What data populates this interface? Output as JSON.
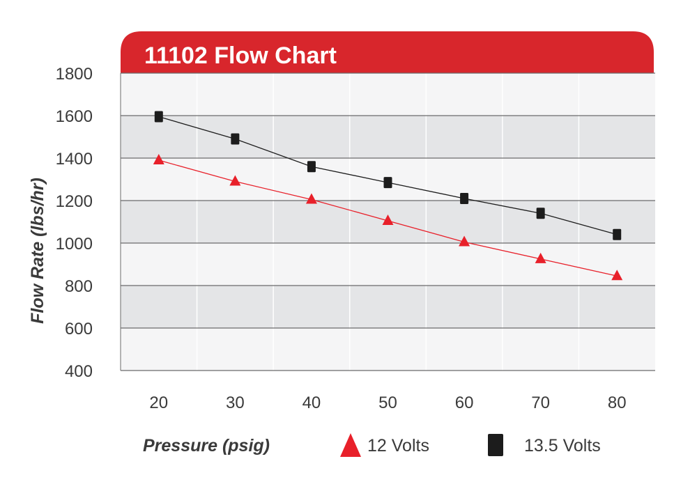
{
  "colors": {
    "header_red": "#d8262c",
    "band_gray": "#e4e5e7",
    "band_light": "#f5f5f6",
    "grid": "#6b6b6b",
    "series_12v": "#e8202a",
    "series_135v": "#1c1c1c",
    "text": "#3a3a3a"
  },
  "chart_data": {
    "type": "line",
    "title": "11102 Flow Chart",
    "xlabel": "Pressure (psig)",
    "ylabel": "Flow Rate (lbs/hr)",
    "xlim": [
      15,
      85
    ],
    "ylim": [
      400,
      1800
    ],
    "x_ticks": [
      20,
      30,
      40,
      50,
      60,
      70,
      80
    ],
    "y_ticks": [
      400,
      600,
      800,
      1000,
      1200,
      1400,
      1600,
      1800
    ],
    "grid": "horizontal",
    "legend_position": "bottom",
    "series": [
      {
        "name": "12 Volts",
        "marker": "triangle",
        "color": "#e8202a",
        "x": [
          20,
          30,
          40,
          50,
          60,
          70,
          80
        ],
        "y": [
          1390,
          1290,
          1205,
          1105,
          1005,
          925,
          845
        ]
      },
      {
        "name": "13.5 Volts",
        "marker": "square",
        "color": "#1c1c1c",
        "x": [
          20,
          30,
          40,
          50,
          60,
          70,
          80
        ],
        "y": [
          1595,
          1490,
          1360,
          1285,
          1210,
          1140,
          1040
        ]
      }
    ]
  }
}
